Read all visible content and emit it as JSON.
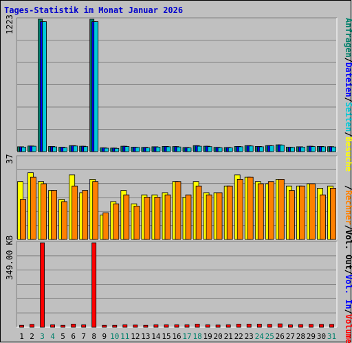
{
  "title": "Tages-Statistik im Monat Januar 2026",
  "colors": {
    "background": "#c0c0c0",
    "title": "#0000cc",
    "hits": "#00806b",
    "files": "#0000ff",
    "pages": "#00c8d8",
    "visits": "#ffff00",
    "hosts": "#ff8000",
    "kbytes": "#ff0000",
    "weekend_day": "#00806b",
    "weekday": "#000000"
  },
  "right_legend": {
    "panel1": [
      {
        "text": "Anfragen",
        "color": "#00806b"
      },
      {
        "text": "/",
        "color": "#000000"
      },
      {
        "text": "Dateien",
        "color": "#0000ff"
      },
      {
        "text": "/",
        "color": "#000000"
      },
      {
        "text": "Seiten",
        "color": "#00c8d8"
      },
      {
        "text": "/",
        "color": "#000000"
      },
      {
        "text": "Besuche",
        "color": "#ffff00"
      }
    ],
    "panel2": [
      {
        "text": "/",
        "color": "#000000"
      },
      {
        "text": "Rechner",
        "color": "#ff8000"
      },
      {
        "text": "/",
        "color": "#000000"
      },
      {
        "text": "Vol. Out",
        "color": "#000000"
      },
      {
        "text": "/",
        "color": "#000000"
      },
      {
        "text": "Vol. In",
        "color": "#0000ff"
      },
      {
        "text": "/",
        "color": "#000000"
      },
      {
        "text": "Volumen",
        "color": "#ff0000"
      }
    ]
  },
  "chart_data": [
    {
      "type": "bar",
      "panel": "Anfragen / Dateien / Seiten",
      "ymax_label": "1223",
      "ylim": [
        0,
        1223
      ],
      "categories": [
        "1",
        "2",
        "3",
        "4",
        "5",
        "6",
        "7",
        "8",
        "9",
        "10",
        "11",
        "12",
        "13",
        "14",
        "15",
        "16",
        "17",
        "18",
        "19",
        "20",
        "21",
        "22",
        "23",
        "24",
        "25",
        "26",
        "27",
        "28",
        "29",
        "30",
        "31"
      ],
      "weekend": [
        3,
        4,
        10,
        11,
        17,
        18,
        24,
        25,
        31
      ],
      "series": [
        {
          "name": "Anfragen",
          "color": "#00806b",
          "values": [
            45,
            52,
            1223,
            48,
            41,
            55,
            50,
            1223,
            35,
            33,
            50,
            42,
            39,
            45,
            48,
            47,
            38,
            55,
            50,
            39,
            38,
            48,
            55,
            48,
            56,
            63,
            42,
            45,
            50,
            48,
            46
          ]
        },
        {
          "name": "Dateien",
          "color": "#0000ff",
          "values": [
            45,
            52,
            1200,
            48,
            41,
            55,
            50,
            1200,
            35,
            33,
            50,
            42,
            39,
            45,
            48,
            47,
            38,
            55,
            50,
            39,
            38,
            48,
            55,
            48,
            56,
            63,
            42,
            45,
            50,
            48,
            46
          ]
        },
        {
          "name": "Seiten",
          "color": "#00c8d8",
          "values": [
            42,
            50,
            1200,
            44,
            37,
            52,
            46,
            1200,
            32,
            30,
            47,
            39,
            35,
            42,
            45,
            43,
            35,
            50,
            46,
            36,
            35,
            45,
            52,
            45,
            53,
            60,
            39,
            42,
            47,
            45,
            43
          ]
        }
      ]
    },
    {
      "type": "bar",
      "panel": "Besuche / Rechner",
      "ymax_label": "37",
      "ylim": [
        0,
        37
      ],
      "categories": [
        "1",
        "2",
        "3",
        "4",
        "5",
        "6",
        "7",
        "8",
        "9",
        "10",
        "11",
        "12",
        "13",
        "14",
        "15",
        "16",
        "17",
        "18",
        "19",
        "20",
        "21",
        "22",
        "23",
        "24",
        "25",
        "26",
        "27",
        "28",
        "29",
        "30",
        "31"
      ],
      "series": [
        {
          "name": "Besuche",
          "color": "#ffff00",
          "values": [
            26,
            30,
            26,
            22,
            18,
            29,
            21,
            27,
            11,
            17,
            22,
            16,
            20,
            20,
            21,
            26,
            19,
            26,
            21,
            21,
            24,
            29,
            28,
            26,
            25,
            27,
            24,
            24,
            25,
            23,
            24
          ]
        },
        {
          "name": "Rechner",
          "color": "#ff8000",
          "values": [
            18,
            28,
            25,
            22,
            17,
            24,
            22,
            26,
            12,
            16,
            20,
            15,
            19,
            19,
            20,
            26,
            20,
            24,
            20,
            21,
            24,
            27,
            28,
            25,
            26,
            27,
            22,
            24,
            25,
            20,
            23
          ]
        }
      ]
    },
    {
      "type": "bar",
      "panel": "Volumen",
      "ymax_label": "349.00 KB",
      "ylim": [
        0,
        349
      ],
      "categories": [
        "1",
        "2",
        "3",
        "4",
        "5",
        "6",
        "7",
        "8",
        "9",
        "10",
        "11",
        "12",
        "13",
        "14",
        "15",
        "16",
        "17",
        "18",
        "19",
        "20",
        "21",
        "22",
        "23",
        "24",
        "25",
        "26",
        "27",
        "28",
        "29",
        "30",
        "31"
      ],
      "series": [
        {
          "name": "Volumen",
          "color": "#ff0000",
          "values": [
            8,
            12,
            349,
            10,
            8,
            13,
            10,
            349,
            8,
            8,
            10,
            9,
            8,
            10,
            10,
            10,
            10,
            13,
            10,
            9,
            10,
            13,
            13,
            13,
            12,
            14,
            10,
            11,
            12,
            12,
            12
          ]
        }
      ]
    }
  ]
}
